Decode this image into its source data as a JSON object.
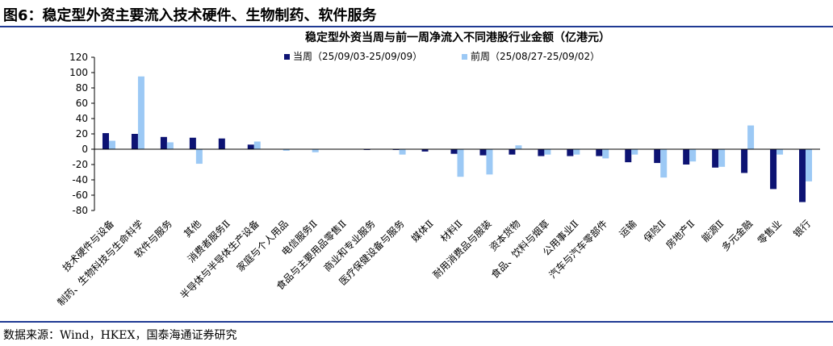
{
  "figure": {
    "title": "图6：稳定型外资主要流入技术硬件、生物制药、软件服务",
    "source": "数据来源：Wind，HKEX，国泰海通证券研究"
  },
  "chart_data": {
    "type": "bar",
    "title": "稳定型外资当周与前一周净流入不同港股行业金额（亿港元）",
    "xlabel": "",
    "ylabel": "",
    "ylim": [
      -80,
      120
    ],
    "yticks": [
      -80,
      -60,
      -40,
      -20,
      0,
      20,
      40,
      60,
      80,
      100,
      120
    ],
    "grid": false,
    "legend_position": "top",
    "categories": [
      "技术硬件与设备",
      "制药、生物科技与生命科学",
      "软件与服务",
      "其他",
      "消费者服务Ⅱ",
      "半导体与半导体生产设备",
      "家庭与个人用品",
      "电信服务Ⅱ",
      "食品与主要用品零售Ⅱ",
      "商业和专业服务",
      "医疗保健设备与服务",
      "媒体Ⅱ",
      "材料Ⅱ",
      "耐用消费品与服装",
      "资本货物",
      "食品、饮料与烟草",
      "公用事业Ⅱ",
      "汽车与汽车零部件",
      "运输",
      "保险Ⅱ",
      "房地产Ⅱ",
      "能源Ⅱ",
      "多元金融",
      "零售业",
      "银行"
    ],
    "series": [
      {
        "name": "当周（25/09/03-25/09/09）",
        "color": "#0d1373",
        "values": [
          21,
          20,
          16,
          15,
          14,
          6,
          0,
          0,
          0,
          -1,
          -1,
          -3,
          -6,
          -8,
          -7,
          -9,
          -9,
          -9,
          -17,
          -18,
          -20,
          -24,
          -31,
          -52,
          -69
        ]
      },
      {
        "name": "前周（25/08/27-25/09/02）",
        "color": "#9cc9f5",
        "values": [
          11,
          95,
          9,
          -19,
          0,
          10,
          -2,
          -4,
          0,
          0,
          -7,
          0,
          -36,
          -33,
          5,
          -7,
          -7,
          -12,
          -7,
          -37,
          -16,
          -23,
          31,
          -7,
          -42
        ]
      }
    ]
  }
}
